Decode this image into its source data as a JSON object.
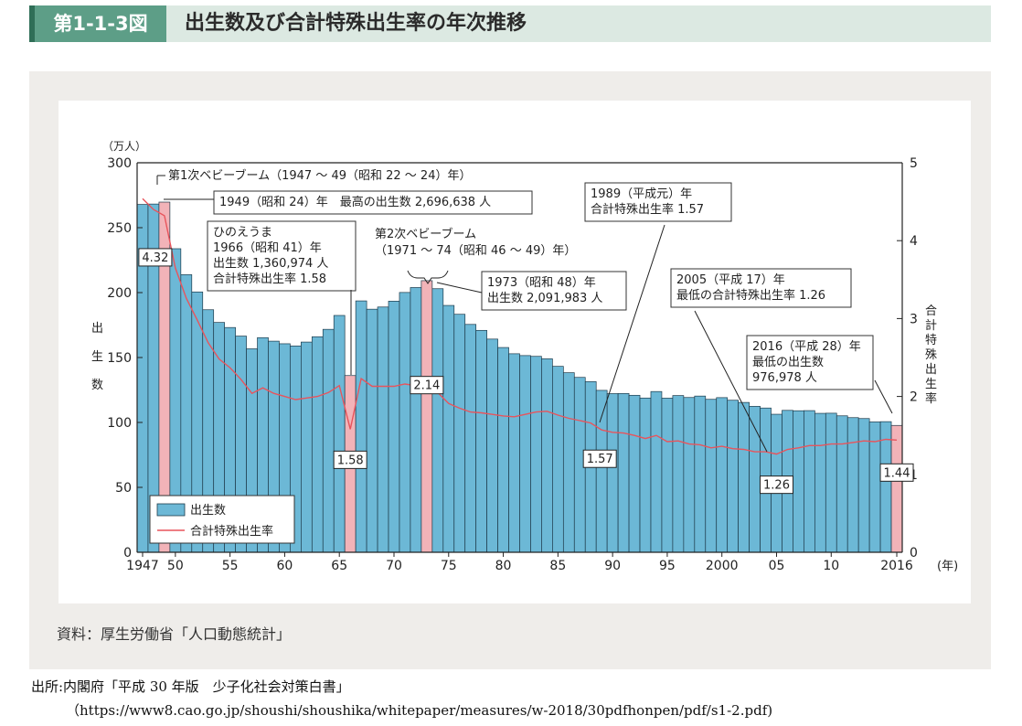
{
  "header": {
    "figure_number": "第1-1-3図",
    "title": "出生数及び合計特殊出生率の年次推移"
  },
  "footer": {
    "source": "資料：厚生労働省「人口動態統計」",
    "citation": "出所:内閣府「平成 30 年版　少子化社会対策白書」",
    "url": "（https://www8.cao.go.jp/shoushi/shoushika/whitepaper/measures/w-2018/30pdfhonpen/pdf/s1-2.pdf)"
  },
  "colors": {
    "bar": "#6cb8d6",
    "bar_highlight": "#f2b3b8",
    "bar_stroke": "#1d3a4a",
    "line": "#e8545c"
  },
  "chart_data": {
    "type": "bar+line",
    "left_unit": "（万人）",
    "left_axis_label": "出生数",
    "right_axis_label": "合計特殊出生率",
    "x_unit": "(年)",
    "x_range": [
      1947,
      2016
    ],
    "y_left_range": [
      0,
      300
    ],
    "y_right_range": [
      0,
      5
    ],
    "y_left_ticks": [
      0,
      50,
      100,
      150,
      200,
      250,
      300
    ],
    "y_right_ticks": [
      0,
      1,
      2,
      3,
      4,
      5
    ],
    "x_tick_labels": [
      {
        "year": 1947,
        "label": "1947"
      },
      {
        "year": 1950,
        "label": "50"
      },
      {
        "year": 1955,
        "label": "55"
      },
      {
        "year": 1960,
        "label": "60"
      },
      {
        "year": 1965,
        "label": "65"
      },
      {
        "year": 1970,
        "label": "70"
      },
      {
        "year": 1975,
        "label": "75"
      },
      {
        "year": 1980,
        "label": "80"
      },
      {
        "year": 1985,
        "label": "85"
      },
      {
        "year": 1990,
        "label": "90"
      },
      {
        "year": 1995,
        "label": "95"
      },
      {
        "year": 2000,
        "label": "2000"
      },
      {
        "year": 2005,
        "label": "05"
      },
      {
        "year": 2010,
        "label": "10"
      },
      {
        "year": 2016,
        "label": "2016"
      }
    ],
    "highlight_years": [
      1949,
      1966,
      1973,
      2016
    ],
    "years": [
      1947,
      1948,
      1949,
      1950,
      1951,
      1952,
      1953,
      1954,
      1955,
      1956,
      1957,
      1958,
      1959,
      1960,
      1961,
      1962,
      1963,
      1964,
      1965,
      1966,
      1967,
      1968,
      1969,
      1970,
      1971,
      1972,
      1973,
      1974,
      1975,
      1976,
      1977,
      1978,
      1979,
      1980,
      1981,
      1982,
      1983,
      1984,
      1985,
      1986,
      1987,
      1988,
      1989,
      1990,
      1991,
      1992,
      1993,
      1994,
      1995,
      1996,
      1997,
      1998,
      1999,
      2000,
      2001,
      2002,
      2003,
      2004,
      2005,
      2006,
      2007,
      2008,
      2009,
      2010,
      2011,
      2012,
      2013,
      2014,
      2015,
      2016
    ],
    "series": [
      {
        "name": "出生数",
        "kind": "bar",
        "axis": "left",
        "values": [
          267.9,
          268.2,
          269.7,
          233.8,
          213.8,
          200.5,
          186.8,
          177.0,
          173.1,
          166.5,
          156.7,
          165.3,
          162.6,
          160.6,
          158.9,
          161.9,
          166.0,
          171.7,
          182.4,
          136.1,
          193.6,
          187.2,
          188.9,
          193.4,
          200.1,
          203.9,
          209.2,
          203.0,
          190.1,
          183.3,
          175.5,
          170.9,
          164.2,
          157.7,
          152.9,
          151.5,
          150.9,
          149.0,
          143.2,
          138.3,
          134.7,
          131.4,
          124.7,
          122.2,
          122.3,
          120.9,
          118.8,
          123.8,
          118.7,
          120.7,
          119.2,
          120.3,
          117.8,
          119.1,
          117.1,
          115.4,
          112.4,
          111.1,
          106.3,
          109.3,
          109.0,
          109.1,
          107.0,
          107.1,
          105.1,
          103.7,
          103.0,
          100.4,
          100.6,
          97.7
        ]
      },
      {
        "name": "合計特殊出生率",
        "kind": "line",
        "axis": "right",
        "values": [
          4.54,
          4.4,
          4.32,
          3.65,
          3.26,
          2.98,
          2.69,
          2.48,
          2.37,
          2.22,
          2.04,
          2.11,
          2.04,
          2.0,
          1.96,
          1.98,
          2.0,
          2.05,
          2.14,
          1.58,
          2.23,
          2.13,
          2.13,
          2.13,
          2.16,
          2.14,
          2.14,
          2.05,
          1.91,
          1.85,
          1.8,
          1.79,
          1.77,
          1.75,
          1.74,
          1.77,
          1.8,
          1.81,
          1.76,
          1.72,
          1.69,
          1.66,
          1.57,
          1.54,
          1.53,
          1.5,
          1.46,
          1.5,
          1.42,
          1.43,
          1.39,
          1.38,
          1.34,
          1.36,
          1.33,
          1.32,
          1.29,
          1.29,
          1.26,
          1.32,
          1.34,
          1.37,
          1.37,
          1.39,
          1.39,
          1.41,
          1.43,
          1.42,
          1.45,
          1.44
        ]
      }
    ],
    "value_labels": [
      {
        "year": 1949,
        "label": "4.32"
      },
      {
        "year": 1966,
        "label": "1.58"
      },
      {
        "year": 1973,
        "label": "2.14"
      },
      {
        "year": 1989,
        "label": "1.57"
      },
      {
        "year": 2005,
        "label": "1.26"
      },
      {
        "year": 2016,
        "label": "1.44"
      }
    ],
    "annotations": {
      "boom1": "第1次ベビーブーム（1947 ～ 49（昭和 22 ～ 24）年）",
      "max1949": "1949（昭和 24）年　最高の出生数 2,696,638 人",
      "hinoe": [
        "ひのえうま",
        "1966（昭和 41）年",
        "出生数 1,360,974 人",
        "合計特殊出生率 1.58"
      ],
      "boom2": [
        "第2次ベビーブーム",
        "（1971 ～ 74（昭和 46 ～ 49）年）"
      ],
      "y1973": [
        "1973（昭和 48）年",
        "出生数 2,091,983 人"
      ],
      "y1989": [
        "1989（平成元）年",
        "合計特殊出生率 1.57"
      ],
      "y2005": [
        "2005（平成 17）年",
        "最低の合計特殊出生率 1.26"
      ],
      "y2016": [
        "2016（平成 28）年",
        "最低の出生数",
        "976,978 人"
      ]
    },
    "legend": {
      "bar": "出生数",
      "line": "合計特殊出生率",
      "position": "bottom-left"
    }
  }
}
